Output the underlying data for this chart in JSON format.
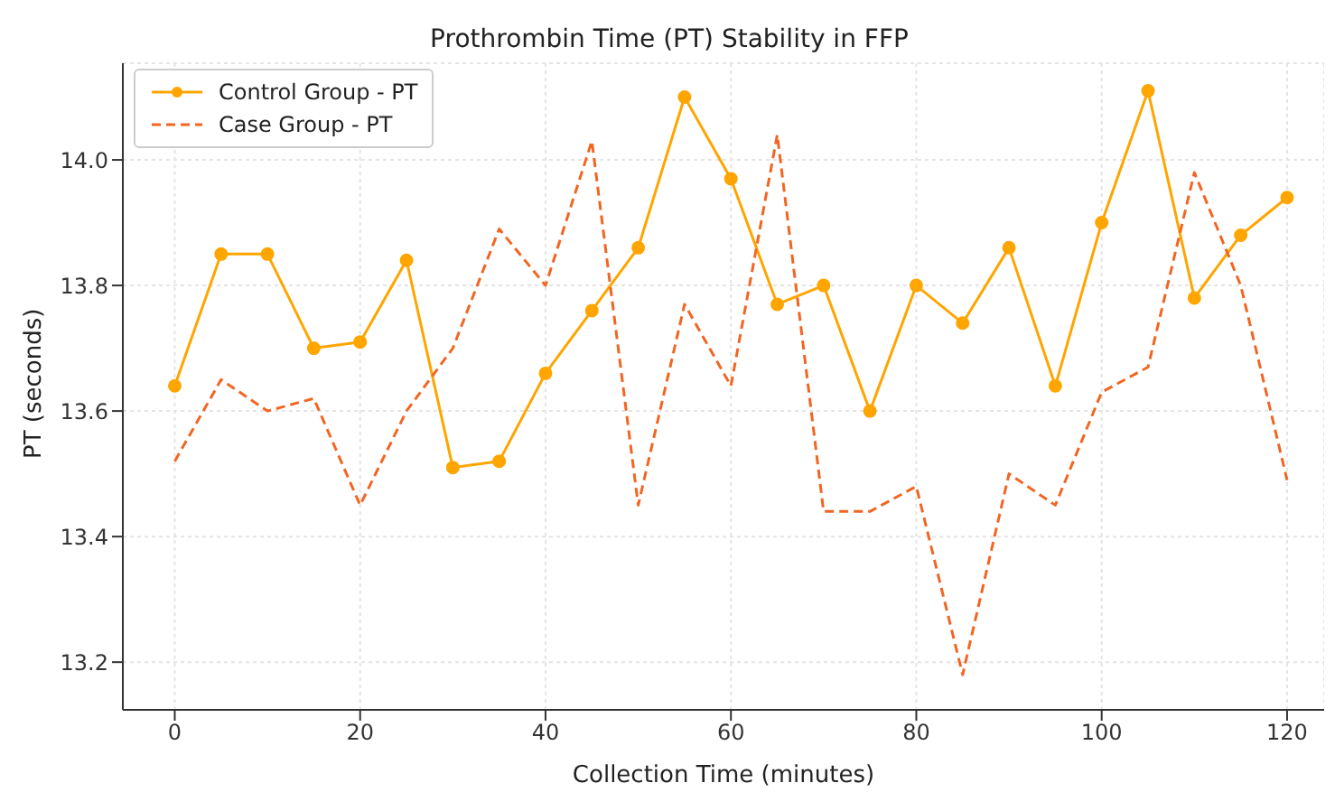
{
  "chart_data": {
    "type": "line",
    "title": "Prothrombin Time (PT) Stability in FFP",
    "xlabel": "Collection Time (minutes)",
    "ylabel": "PT (seconds)",
    "x": [
      0,
      5,
      10,
      15,
      20,
      25,
      30,
      35,
      40,
      45,
      50,
      55,
      60,
      65,
      70,
      75,
      80,
      85,
      90,
      95,
      100,
      105,
      110,
      115,
      120
    ],
    "series": [
      {
        "name": "Control Group - PT",
        "color": "#ffa500",
        "marker": "circle",
        "line_style": "solid",
        "values": [
          13.64,
          13.85,
          13.85,
          13.7,
          13.71,
          13.84,
          13.51,
          13.52,
          13.66,
          13.76,
          13.86,
          14.1,
          13.97,
          13.77,
          13.8,
          13.6,
          13.8,
          13.74,
          13.86,
          13.64,
          13.9,
          14.11,
          13.78,
          13.88,
          13.94
        ]
      },
      {
        "name": "Case Group - PT",
        "color": "#f26522",
        "marker": "none",
        "line_style": "dashed",
        "values": [
          13.52,
          13.65,
          13.6,
          13.62,
          13.45,
          13.6,
          13.7,
          13.89,
          13.8,
          14.03,
          13.45,
          13.77,
          13.64,
          14.04,
          13.44,
          13.44,
          13.48,
          13.18,
          13.5,
          13.45,
          13.63,
          13.67,
          13.98,
          13.8,
          13.49
        ]
      }
    ],
    "xlim": [
      -5.6,
      124
    ],
    "xticks": [
      0,
      20,
      40,
      60,
      80,
      100,
      120
    ],
    "ylim": [
      13.124,
      14.154
    ],
    "yticks": [
      {
        "value": 13.2,
        "label": "13.2"
      },
      {
        "value": 13.4,
        "label": "13.4"
      },
      {
        "value": 13.6,
        "label": "13.6"
      },
      {
        "value": 13.8,
        "label": "13.8"
      },
      {
        "value": 14,
        "label": "14.0"
      }
    ],
    "grid": true,
    "legend": "top left"
  }
}
